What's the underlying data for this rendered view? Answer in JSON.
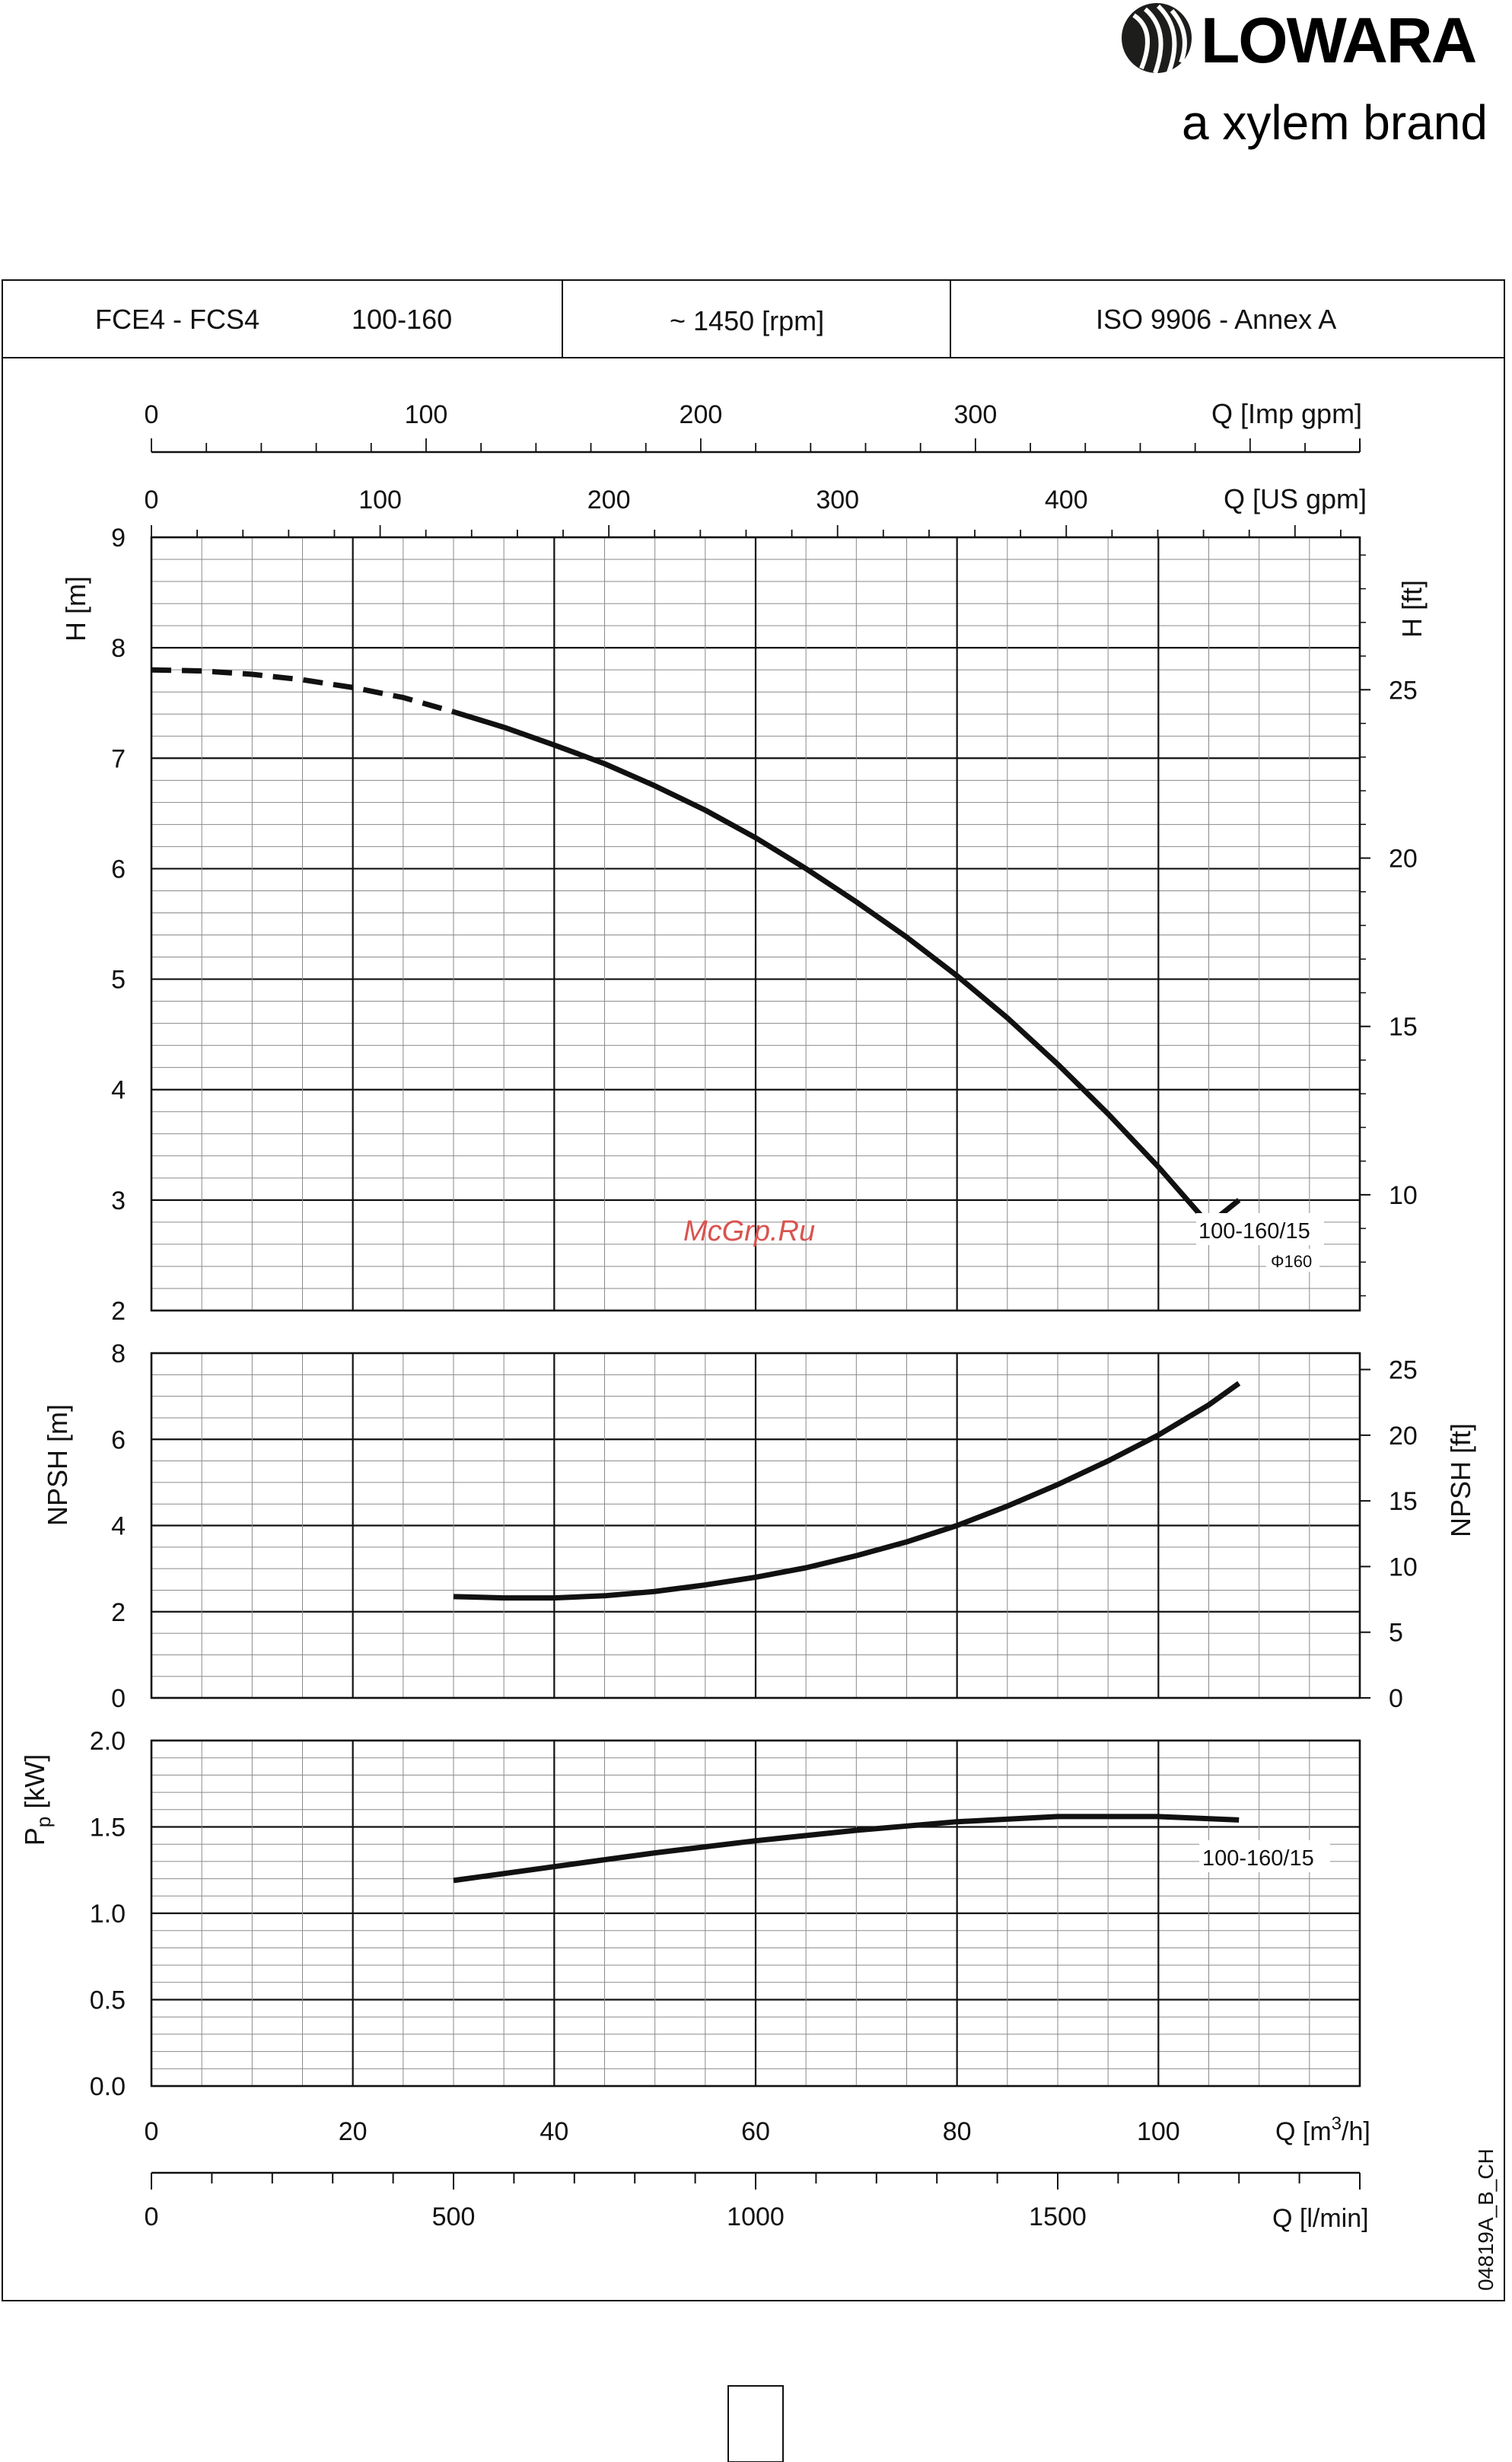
{
  "brand": {
    "name": "LOWARA",
    "tagline": "a xylem brand",
    "color": "#1d1d1b"
  },
  "header": {
    "model_series": "FCE4 - FCS4",
    "model_size": "100-160",
    "speed": "~ 1450 [rpm]",
    "standard": "ISO 9906 - Annex A"
  },
  "watermark": "McGrp.Ru",
  "watermark_color": "#d9534f",
  "drawing_code": "04819A_B_CH",
  "chart_data": [
    {
      "id": "head",
      "type": "line",
      "xlabel": "Q [m3/h]",
      "ylabel": "H [m]",
      "ylabel_right": "H [ft]",
      "xlim": [
        0,
        120
      ],
      "ylim": [
        2,
        9
      ],
      "yticks": [
        "2",
        "3",
        "4",
        "5",
        "6",
        "7",
        "8",
        "9"
      ],
      "yticks_right": [
        "10",
        "15",
        "20",
        "25"
      ],
      "grid": true,
      "series": [
        {
          "name": "100-160/15",
          "sub_label": "Φ160",
          "dashed_segment": {
            "x": [
              0,
              5,
              10,
              15,
              20,
              25,
              30
            ],
            "y": [
              7.8,
              7.79,
              7.76,
              7.71,
              7.64,
              7.55,
              7.42
            ]
          },
          "x": [
            30,
            35,
            40,
            45,
            50,
            55,
            60,
            65,
            70,
            75,
            80,
            85,
            90,
            95,
            100,
            105,
            108
          ],
          "y": [
            7.42,
            7.28,
            7.12,
            6.95,
            6.75,
            6.53,
            6.28,
            6.0,
            5.7,
            5.38,
            5.03,
            4.65,
            4.23,
            3.78,
            3.3,
            2.78,
            3.0
          ]
        }
      ]
    },
    {
      "id": "npsh",
      "type": "line",
      "xlabel": "Q [m3/h]",
      "ylabel": "NPSH [m]",
      "ylabel_right": "NPSH [ft]",
      "xlim": [
        0,
        120
      ],
      "ylim": [
        0,
        8
      ],
      "yticks": [
        "0",
        "2",
        "4",
        "6",
        "8"
      ],
      "yticks_right": [
        "0",
        "5",
        "10",
        "15",
        "20",
        "25"
      ],
      "grid": true,
      "series": [
        {
          "x": [
            30,
            35,
            40,
            45,
            50,
            55,
            60,
            65,
            70,
            75,
            80,
            85,
            90,
            95,
            100,
            105,
            108
          ],
          "y": [
            2.35,
            2.32,
            2.32,
            2.37,
            2.47,
            2.62,
            2.8,
            3.02,
            3.3,
            3.62,
            4.0,
            4.45,
            4.95,
            5.5,
            6.1,
            6.8,
            7.3
          ]
        }
      ]
    },
    {
      "id": "power",
      "type": "line",
      "xlabel": "Q [m3/h]",
      "ylabel": "Pp [kW]",
      "xlim": [
        0,
        120
      ],
      "ylim": [
        0,
        2.0
      ],
      "yticks": [
        "0.0",
        "0.5",
        "1.0",
        "1.5",
        "2.0"
      ],
      "grid": true,
      "series": [
        {
          "name": "100-160/15",
          "x": [
            30,
            40,
            50,
            60,
            70,
            80,
            90,
            100,
            108
          ],
          "y": [
            1.19,
            1.27,
            1.35,
            1.42,
            1.48,
            1.53,
            1.56,
            1.56,
            1.54
          ]
        }
      ]
    }
  ],
  "axes": {
    "q_m3h": {
      "label": "Q [m3/h]",
      "ticks": [
        "0",
        "20",
        "40",
        "60",
        "80",
        "100"
      ]
    },
    "q_lmin": {
      "label": "Q [l/min]",
      "ticks": [
        "0",
        "500",
        "1000",
        "1500"
      ]
    },
    "q_us_gpm": {
      "label": "Q [US gpm]",
      "ticks": [
        "0",
        "100",
        "200",
        "300",
        "400"
      ]
    },
    "q_imp_gpm": {
      "label": "Q [Imp gpm]",
      "ticks": [
        "0",
        "100",
        "200",
        "300"
      ]
    }
  }
}
